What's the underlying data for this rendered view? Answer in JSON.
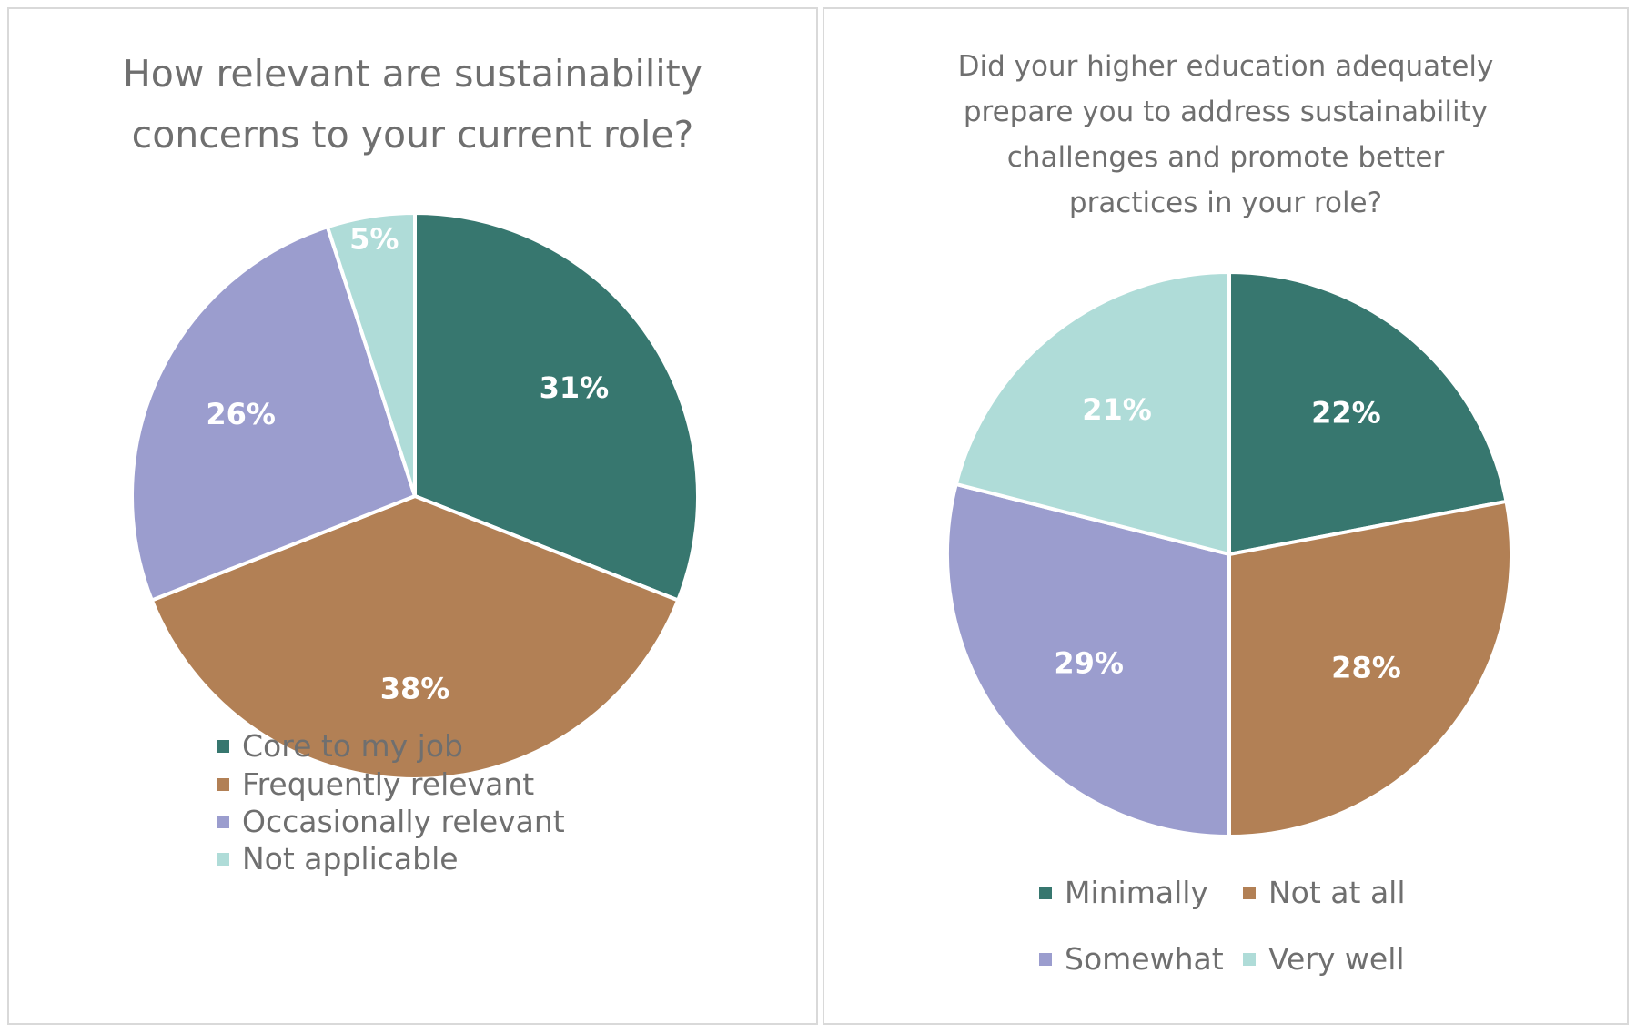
{
  "colors": {
    "teal": "#37776f",
    "brown": "#b28055",
    "lavender": "#9b9dce",
    "lightteal": "#afdcd8",
    "text": "#6f6f6f"
  },
  "chart_data": [
    {
      "type": "pie",
      "title": "How relevant are sustainability concerns to your current role?",
      "title_lines": [
        "How relevant are sustainability",
        "concerns to your current role?"
      ],
      "categories": [
        "Core to my job",
        "Frequently relevant",
        "Occasionally relevant",
        "Not applicable"
      ],
      "values": [
        31,
        38,
        26,
        5
      ],
      "labels": [
        "31%",
        "38%",
        "26%",
        "5%"
      ],
      "colors": [
        "#37776f",
        "#b28055",
        "#9b9dce",
        "#afdcd8"
      ],
      "legend_position": "bottom"
    },
    {
      "type": "pie",
      "title": "Did your higher education adequately prepare you to address sustainability challenges and promote better practices in your role?",
      "title_lines": [
        "Did your higher education adequately",
        "prepare you to address sustainability",
        "challenges and promote better",
        "practices in your role?"
      ],
      "categories": [
        "Minimally",
        "Not at all",
        "Somewhat",
        "Very well"
      ],
      "values": [
        22,
        28,
        29,
        21
      ],
      "labels": [
        "22%",
        "28%",
        "29%",
        "21%"
      ],
      "colors": [
        "#37776f",
        "#b28055",
        "#9b9dce",
        "#afdcd8"
      ],
      "legend_position": "bottom"
    }
  ]
}
